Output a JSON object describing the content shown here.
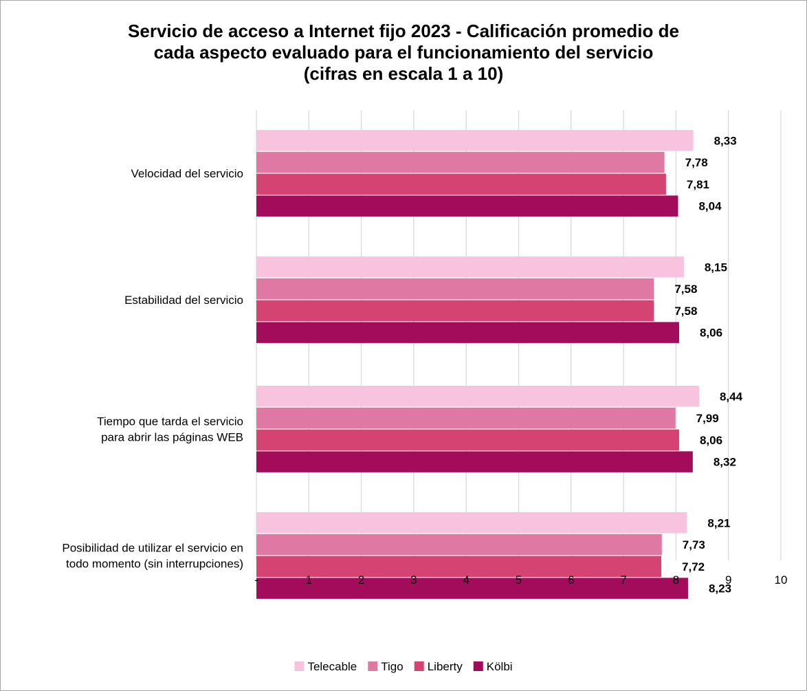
{
  "chart_data": {
    "type": "bar",
    "orientation": "horizontal",
    "title": [
      "Servicio de acceso a Internet fijo 2023 - Calificación promedio de",
      "cada aspecto evaluado para el funcionamiento del servicio",
      "(cifras en escala 1 a 10)"
    ],
    "categories": [
      [
        "Velocidad del servicio"
      ],
      [
        "Estabilidad del servicio"
      ],
      [
        "Tiempo que tarda el servicio",
        "para abrir las páginas WEB"
      ],
      [
        "Posibilidad de utilizar el servicio en",
        "todo momento (sin interrupciones)"
      ]
    ],
    "series": [
      {
        "name": "Telecable",
        "color": "#f7c3df",
        "values": [
          8.33,
          8.15,
          8.44,
          8.21
        ],
        "labels": [
          "8,33",
          "8,15",
          "8,44",
          "8,21"
        ]
      },
      {
        "name": "Tigo",
        "color": "#df79a3",
        "values": [
          7.78,
          7.58,
          7.99,
          7.73
        ],
        "labels": [
          "7,78",
          "7,58",
          "7,99",
          "7,73"
        ]
      },
      {
        "name": "Liberty",
        "color": "#d44372",
        "values": [
          7.81,
          7.58,
          8.06,
          7.72
        ],
        "labels": [
          "7,81",
          "7,58",
          "8,06",
          "7,72"
        ]
      },
      {
        "name": "Kölbi",
        "color": "#a20c5a",
        "values": [
          8.04,
          8.06,
          8.32,
          8.23
        ],
        "labels": [
          "8,04",
          "8,06",
          "8,32",
          "8,23"
        ]
      }
    ],
    "xlim": [
      0,
      10
    ],
    "xticks": [
      "-",
      "1",
      "2",
      "3",
      "4",
      "5",
      "6",
      "7",
      "8",
      "9",
      "10"
    ],
    "grid": true,
    "gridline_color": "#d9d9d9",
    "legend": "bottom",
    "data_labels": true
  }
}
